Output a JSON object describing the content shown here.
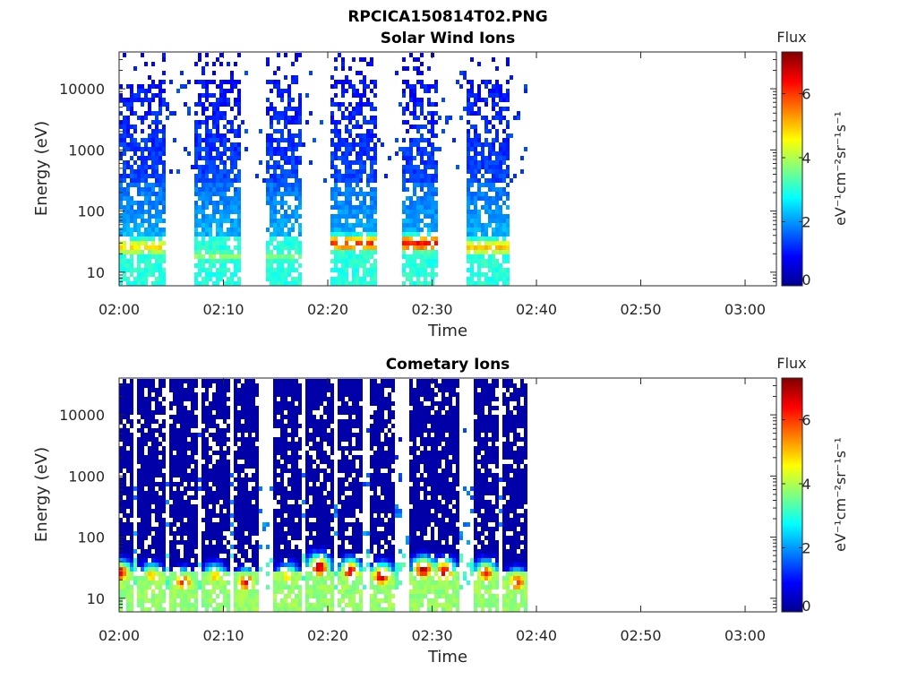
{
  "figure": {
    "filename_title": "RPCICA150814T02.PNG"
  },
  "colormap": "jet",
  "chart_data": [
    {
      "type": "heatmap",
      "title": "Solar Wind Ions",
      "xlabel": "Time",
      "ylabel": "Energy (eV)",
      "yscale": "log",
      "ylim": [
        6,
        40000
      ],
      "xlim": [
        "02:00",
        "03:03"
      ],
      "x_ticks": [
        "02:00",
        "02:10",
        "02:20",
        "02:30",
        "02:40",
        "02:50",
        "03:00"
      ],
      "y_ticks": [
        "10",
        "100",
        "1000",
        "10000"
      ],
      "colorbar": {
        "label": "Flux",
        "unit": "eV⁻¹cm⁻²sr⁻¹s⁻¹",
        "range": [
          0,
          7.3
        ],
        "ticks": [
          "0",
          "2",
          "4",
          "6"
        ]
      },
      "data_end": "02:39",
      "bursts": [
        {
          "start": "02:00",
          "end": "02:04",
          "peak_energy_ev": 28,
          "peak_flux": 4.8
        },
        {
          "start": "02:07",
          "end": "02:11",
          "peak_energy_ev": 20,
          "peak_flux": 3.8
        },
        {
          "start": "02:14",
          "end": "02:17",
          "peak_energy_ev": 20,
          "peak_flux": 3.6
        },
        {
          "start": "02:20",
          "end": "02:24",
          "peak_energy_ev": 32,
          "peak_flux": 6.0
        },
        {
          "start": "02:27",
          "end": "02:30",
          "peak_energy_ev": 32,
          "peak_flux": 6.3
        },
        {
          "start": "02:33",
          "end": "02:37",
          "peak_energy_ev": 28,
          "peak_flux": 5.0
        }
      ]
    },
    {
      "type": "heatmap",
      "title": "Cometary Ions",
      "xlabel": "Time",
      "ylabel": "Energy (eV)",
      "yscale": "log",
      "ylim": [
        6,
        40000
      ],
      "xlim": [
        "02:00",
        "03:03"
      ],
      "x_ticks": [
        "02:00",
        "02:10",
        "02:20",
        "02:30",
        "02:40",
        "02:50",
        "03:00"
      ],
      "y_ticks": [
        "10",
        "100",
        "1000",
        "10000"
      ],
      "colorbar": {
        "label": "Flux",
        "unit": "eV⁻¹cm⁻²sr⁻¹s⁻¹",
        "range": [
          0,
          7.3
        ],
        "ticks": [
          "0",
          "2",
          "4",
          "6"
        ]
      },
      "data_end": "02:39",
      "bursts": [
        {
          "time": "02:00",
          "peak_energy_ev": 28,
          "peak_flux": 6.3
        },
        {
          "time": "02:03",
          "peak_energy_ev": 25,
          "peak_flux": 5.2
        },
        {
          "time": "02:06",
          "peak_energy_ev": 20,
          "peak_flux": 6.2
        },
        {
          "time": "02:09",
          "peak_energy_ev": 25,
          "peak_flux": 5.0
        },
        {
          "time": "02:12",
          "peak_energy_ev": 20,
          "peak_flux": 6.3
        },
        {
          "time": "02:16",
          "peak_energy_ev": 25,
          "peak_flux": 4.8
        },
        {
          "time": "02:19",
          "peak_energy_ev": 35,
          "peak_flux": 7.0
        },
        {
          "time": "02:22",
          "peak_energy_ev": 30,
          "peak_flux": 6.5
        },
        {
          "time": "02:25",
          "peak_energy_ev": 25,
          "peak_flux": 6.8
        },
        {
          "time": "02:29",
          "peak_energy_ev": 32,
          "peak_flux": 7.0
        },
        {
          "time": "02:31",
          "peak_energy_ev": 30,
          "peak_flux": 6.6
        },
        {
          "time": "02:35",
          "peak_energy_ev": 28,
          "peak_flux": 6.0
        },
        {
          "time": "02:38",
          "peak_energy_ev": 20,
          "peak_flux": 6.2
        }
      ]
    }
  ]
}
